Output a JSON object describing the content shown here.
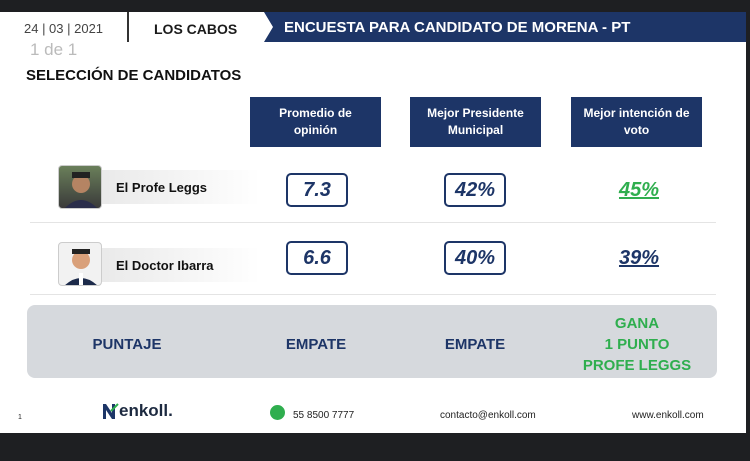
{
  "header": {
    "date": "24 | 03 | 2021",
    "city": "LOS CABOS",
    "banner": "ENCUESTA PARA CANDIDATO DE MORENA - PT"
  },
  "page_indicator": "1 de 1",
  "title": "SELECCIÓN DE CANDIDATOS",
  "columns": [
    "Promedio de opinión",
    "Mejor Presidente Municipal",
    "Mejor intención de voto"
  ],
  "candidates": [
    {
      "name": "El Profe Leggs",
      "promedio": "7.3",
      "presidente": "42%",
      "intencion": "45%"
    },
    {
      "name": "El Doctor Ibarra",
      "promedio": "6.6",
      "presidente": "40%",
      "intencion": "39%"
    }
  ],
  "score": {
    "label": "PUNTAJE",
    "c1": "EMPATE",
    "c2": "EMPATE",
    "c3_line1": "GANA",
    "c3_line2": "1 PUNTO",
    "c3_line3": "PROFE LEGGS"
  },
  "footer": {
    "slide_number": "1",
    "logo": "enkoll.",
    "phone": "55 8500 7777",
    "email": "contacto@enkoll.com",
    "web": "www.enkoll.com"
  },
  "colors": {
    "navy": "#1d3567",
    "green": "#2fae4e",
    "panel": "#d6d9dd"
  }
}
